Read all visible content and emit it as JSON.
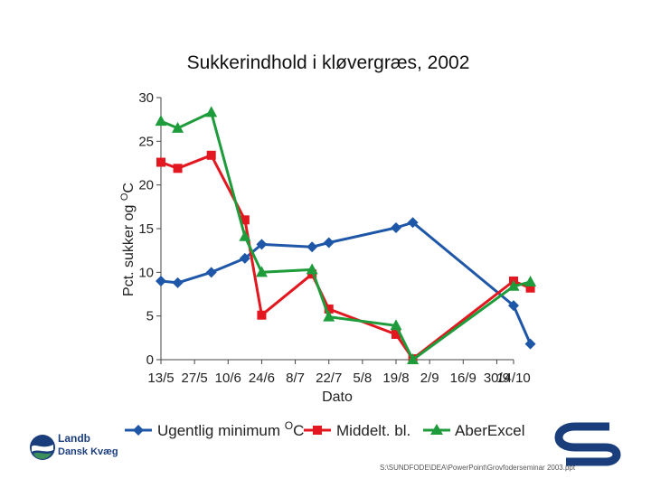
{
  "chart_data": {
    "type": "line",
    "title": "Sukkerindhold i kløvergræs, 2002",
    "xlabel": "Dato",
    "ylabel": "Pct. sukker og oC",
    "ylabel_main": "Pct. sukker og ",
    "ylabel_super": "O",
    "ylabel_unit": "C",
    "ylim": [
      0,
      30
    ],
    "yticks": [
      0,
      5,
      10,
      15,
      20,
      25,
      30
    ],
    "xlim": [
      0,
      21
    ],
    "xticks": [
      {
        "pos": 0,
        "label": "13/5"
      },
      {
        "pos": 2,
        "label": "27/5"
      },
      {
        "pos": 4,
        "label": "10/6"
      },
      {
        "pos": 6,
        "label": "24/6"
      },
      {
        "pos": 8,
        "label": "8/7"
      },
      {
        "pos": 10,
        "label": "22/7"
      },
      {
        "pos": 12,
        "label": "5/8"
      },
      {
        "pos": 14,
        "label": "19/8"
      },
      {
        "pos": 16,
        "label": "2/9"
      },
      {
        "pos": 18,
        "label": "16/9"
      },
      {
        "pos": 20,
        "label": "30/9"
      },
      {
        "pos": 21,
        "label": "14/10"
      }
    ],
    "series": [
      {
        "name": "Ugentlig minimum oC",
        "legend_main": "Ugentlig minimum ",
        "legend_super": "O",
        "legend_unit": "C",
        "color": "#1f57a8",
        "marker": "diamond",
        "x": [
          0,
          1,
          3,
          5,
          6,
          9,
          10,
          14,
          15,
          21,
          22
        ],
        "y": [
          9,
          8.8,
          10,
          11.6,
          13.2,
          12.9,
          13.4,
          15.1,
          15.7,
          6.2,
          1.8
        ]
      },
      {
        "name": "Middelt. bl.",
        "color": "#e3171f",
        "marker": "square",
        "x": [
          0,
          1,
          3,
          5,
          6,
          9,
          10,
          14,
          15,
          21,
          22
        ],
        "y": [
          22.6,
          21.9,
          23.4,
          16,
          5.1,
          9.8,
          5.8,
          2.9,
          0.1,
          9,
          8.2
        ]
      },
      {
        "name": "AberExcel",
        "color": "#1e9c3c",
        "marker": "triangle",
        "x": [
          0,
          1,
          3,
          5,
          6,
          9,
          10,
          14,
          15,
          21,
          22
        ],
        "y": [
          27.3,
          26.5,
          28.3,
          14.1,
          10,
          10.3,
          4.9,
          3.9,
          0,
          8.4,
          8.9
        ]
      }
    ]
  },
  "footer": {
    "org_line1": "Landb",
    "org_line2": "Dansk Kvæg",
    "file_path": "S:\\SUNDFODE\\DEA\\PowerPoint\\Grovfoderseminar 2003.ppt"
  },
  "colors": {
    "brand_blue": "#1a3d7c",
    "logo_green": "#3d8f5a"
  }
}
